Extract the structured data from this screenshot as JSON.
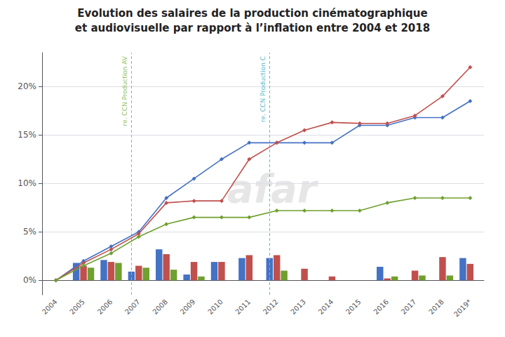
{
  "chart_data": {
    "type": "bar",
    "title": "Evolution des salaires de la production cinématographique",
    "subtitle": "et audiovisuelle par rapport à l’inflation entre 2004 et 2018",
    "categories": [
      "2004",
      "2005",
      "2006",
      "2007",
      "2008",
      "2009",
      "2010",
      "2011",
      "2012",
      "2013",
      "2014",
      "2015",
      "2016",
      "2017",
      "2018",
      "2019*"
    ],
    "series": [
      {
        "type": "bar",
        "color": "#4472C4",
        "values": [
          0.0,
          1.8,
          2.1,
          0.9,
          3.2,
          0.6,
          1.9,
          2.3,
          2.3,
          0.0,
          0.0,
          0.0,
          1.4,
          0.0,
          0.0,
          2.3
        ]
      },
      {
        "type": "bar",
        "color": "#C0504D",
        "values": [
          0.0,
          1.5,
          1.9,
          1.5,
          2.7,
          1.9,
          1.9,
          2.6,
          2.6,
          1.2,
          0.4,
          0.0,
          0.2,
          1.0,
          2.4,
          1.7
        ]
      },
      {
        "type": "bar",
        "color": "#70A030",
        "values": [
          0.0,
          1.3,
          1.8,
          1.3,
          1.1,
          0.4,
          0.0,
          0.0,
          1.0,
          0.0,
          0.0,
          0.0,
          0.4,
          0.5,
          0.5,
          0.0
        ]
      },
      {
        "type": "line",
        "color": "#4472C4",
        "marker": "diamond",
        "values": [
          0.0,
          2.0,
          3.5,
          5.0,
          8.5,
          10.5,
          12.5,
          14.2,
          14.2,
          14.2,
          14.2,
          16.0,
          16.0,
          16.8,
          16.8,
          18.5
        ]
      },
      {
        "type": "line",
        "color": "#C0504D",
        "marker": "diamond",
        "values": [
          0.0,
          1.8,
          3.2,
          4.8,
          8.0,
          8.2,
          8.2,
          12.5,
          14.2,
          15.5,
          16.3,
          16.2,
          16.2,
          17.0,
          19.0,
          22.0
        ]
      },
      {
        "type": "line",
        "color": "#70A030",
        "marker": "diamond",
        "values": [
          0.0,
          1.5,
          2.8,
          4.5,
          5.8,
          6.5,
          6.5,
          6.5,
          7.2,
          7.2,
          7.2,
          7.2,
          8.0,
          8.5,
          8.5,
          8.5
        ]
      }
    ],
    "ylim": [
      -1.5,
      23.5
    ],
    "yticks": [
      {
        "value": 0,
        "label": "0%"
      },
      {
        "value": 5,
        "label": "5%"
      },
      {
        "value": 10,
        "label": "10%"
      },
      {
        "value": 15,
        "label": "15%"
      },
      {
        "value": 20,
        "label": "20%"
      }
    ],
    "grid": true,
    "annotations": [
      {
        "type": "vline",
        "x": "2007",
        "label": "re. CCN Production AV",
        "color": "#90C060"
      },
      {
        "type": "vline",
        "x": "2012",
        "label": "re. CCN Production C",
        "color": "#5BBCCC"
      },
      {
        "type": "text",
        "label": "afar"
      }
    ]
  }
}
